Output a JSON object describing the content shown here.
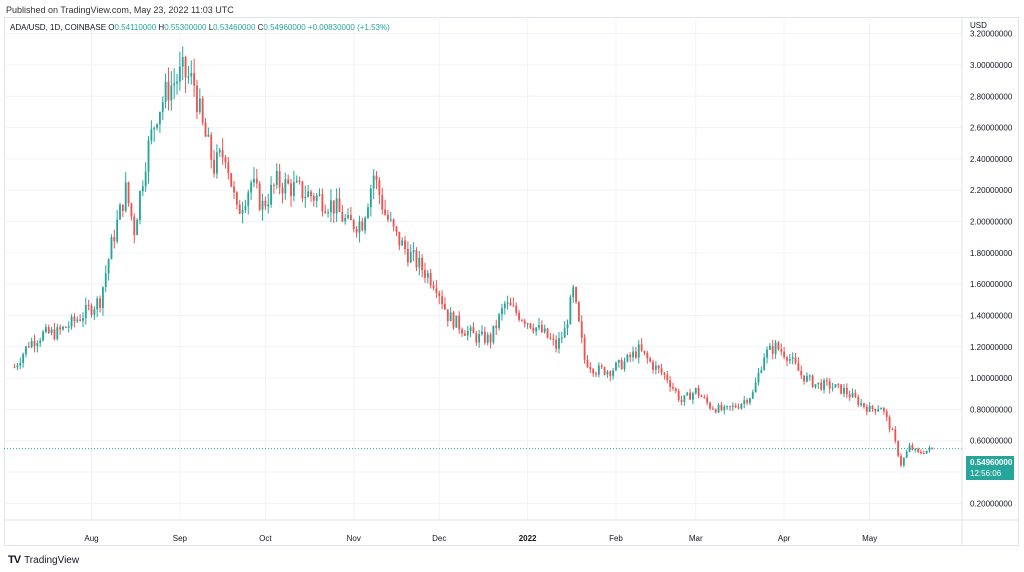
{
  "header": {
    "published": "Published on TradingView.com, May 23, 2022 11:03 UTC"
  },
  "legend": {
    "symbol": "ADA/USD, 1D, COINBASE",
    "o_label": "O",
    "o": "0.54110000",
    "h_label": "H",
    "h": "0.55300000",
    "l_label": "L",
    "l": "0.53460000",
    "c_label": "C",
    "c": "0.54960000",
    "change": "+0.00830000 (+1.53%)"
  },
  "price_label": {
    "price": "0.54960000",
    "countdown": "12:56:06"
  },
  "footer": {
    "brand": "TradingView"
  },
  "colors": {
    "up": "#26a69a",
    "down": "#ef5350",
    "grid": "#f0f3fa"
  },
  "chart_data": {
    "type": "candlestick",
    "symbol": "ADA/USD",
    "timeframe": "1D",
    "exchange": "COINBASE",
    "currency": "USD",
    "ylim": [
      0.1,
      3.3
    ],
    "yticks": [
      {
        "value": 3.2,
        "label": "3.20000000"
      },
      {
        "value": 3.0,
        "label": "3.00000000"
      },
      {
        "value": 2.8,
        "label": "2.80000000"
      },
      {
        "value": 2.6,
        "label": "2.60000000"
      },
      {
        "value": 2.4,
        "label": "2.40000000"
      },
      {
        "value": 2.2,
        "label": "2.20000000"
      },
      {
        "value": 2.0,
        "label": "2.00000000"
      },
      {
        "value": 1.8,
        "label": "1.80000000"
      },
      {
        "value": 1.6,
        "label": "1.60000000"
      },
      {
        "value": 1.4,
        "label": "1.40000000"
      },
      {
        "value": 1.2,
        "label": "1.20000000"
      },
      {
        "value": 1.0,
        "label": "1.00000000"
      },
      {
        "value": 0.8,
        "label": "0.80000000"
      },
      {
        "value": 0.6,
        "label": "0.60000000"
      },
      {
        "value": 0.4,
        "label": "0.40000000"
      },
      {
        "value": 0.2,
        "label": "0.20000000"
      }
    ],
    "xticks": [
      {
        "date": "2021-08-01",
        "label": "Aug"
      },
      {
        "date": "2021-09-01",
        "label": "Sep"
      },
      {
        "date": "2021-10-01",
        "label": "Oct"
      },
      {
        "date": "2021-11-01",
        "label": "Nov"
      },
      {
        "date": "2021-12-01",
        "label": "Dec"
      },
      {
        "date": "2022-01-01",
        "label": "2022"
      },
      {
        "date": "2022-02-01",
        "label": "Feb"
      },
      {
        "date": "2022-03-01",
        "label": "Mar"
      },
      {
        "date": "2022-04-01",
        "label": "Apr"
      },
      {
        "date": "2022-05-01",
        "label": "May"
      }
    ],
    "last_price": 0.5496,
    "close_path": [
      {
        "date": "2021-07-05",
        "close": 1.07
      },
      {
        "date": "2021-07-10",
        "close": 1.22
      },
      {
        "date": "2021-07-15",
        "close": 1.28
      },
      {
        "date": "2021-07-20",
        "close": 1.29
      },
      {
        "date": "2021-07-25",
        "close": 1.35
      },
      {
        "date": "2021-07-30",
        "close": 1.42
      },
      {
        "date": "2021-08-04",
        "close": 1.5
      },
      {
        "date": "2021-08-08",
        "close": 1.85
      },
      {
        "date": "2021-08-13",
        "close": 2.2
      },
      {
        "date": "2021-08-16",
        "close": 1.95
      },
      {
        "date": "2021-08-20",
        "close": 2.4
      },
      {
        "date": "2021-08-24",
        "close": 2.7
      },
      {
        "date": "2021-08-28",
        "close": 2.85
      },
      {
        "date": "2021-09-02",
        "close": 2.95
      },
      {
        "date": "2021-09-06",
        "close": 2.88
      },
      {
        "date": "2021-09-09",
        "close": 2.6
      },
      {
        "date": "2021-09-13",
        "close": 2.35
      },
      {
        "date": "2021-09-17",
        "close": 2.45
      },
      {
        "date": "2021-09-21",
        "close": 2.05
      },
      {
        "date": "2021-09-26",
        "close": 2.25
      },
      {
        "date": "2021-09-30",
        "close": 2.1
      },
      {
        "date": "2021-10-05",
        "close": 2.25
      },
      {
        "date": "2021-10-10",
        "close": 2.22
      },
      {
        "date": "2021-10-15",
        "close": 2.18
      },
      {
        "date": "2021-10-20",
        "close": 2.15
      },
      {
        "date": "2021-10-25",
        "close": 2.1
      },
      {
        "date": "2021-10-30",
        "close": 1.98
      },
      {
        "date": "2021-11-04",
        "close": 2.0
      },
      {
        "date": "2021-11-08",
        "close": 2.3
      },
      {
        "date": "2021-11-12",
        "close": 2.05
      },
      {
        "date": "2021-11-16",
        "close": 1.9
      },
      {
        "date": "2021-11-20",
        "close": 1.8
      },
      {
        "date": "2021-11-25",
        "close": 1.7
      },
      {
        "date": "2021-11-30",
        "close": 1.6
      },
      {
        "date": "2021-12-04",
        "close": 1.4
      },
      {
        "date": "2021-12-09",
        "close": 1.32
      },
      {
        "date": "2021-12-14",
        "close": 1.26
      },
      {
        "date": "2021-12-19",
        "close": 1.25
      },
      {
        "date": "2021-12-24",
        "close": 1.47
      },
      {
        "date": "2021-12-28",
        "close": 1.42
      },
      {
        "date": "2022-01-02",
        "close": 1.35
      },
      {
        "date": "2022-01-07",
        "close": 1.28
      },
      {
        "date": "2022-01-11",
        "close": 1.2
      },
      {
        "date": "2022-01-14",
        "close": 1.3
      },
      {
        "date": "2022-01-17",
        "close": 1.55
      },
      {
        "date": "2022-01-21",
        "close": 1.12
      },
      {
        "date": "2022-01-25",
        "close": 1.05
      },
      {
        "date": "2022-01-30",
        "close": 1.05
      },
      {
        "date": "2022-02-04",
        "close": 1.1
      },
      {
        "date": "2022-02-09",
        "close": 1.18
      },
      {
        "date": "2022-02-14",
        "close": 1.08
      },
      {
        "date": "2022-02-19",
        "close": 1.0
      },
      {
        "date": "2022-02-24",
        "close": 0.85
      },
      {
        "date": "2022-03-01",
        "close": 0.92
      },
      {
        "date": "2022-03-06",
        "close": 0.82
      },
      {
        "date": "2022-03-11",
        "close": 0.79
      },
      {
        "date": "2022-03-16",
        "close": 0.83
      },
      {
        "date": "2022-03-21",
        "close": 0.9
      },
      {
        "date": "2022-03-25",
        "close": 1.15
      },
      {
        "date": "2022-03-29",
        "close": 1.2
      },
      {
        "date": "2022-04-02",
        "close": 1.15
      },
      {
        "date": "2022-04-07",
        "close": 1.02
      },
      {
        "date": "2022-04-12",
        "close": 0.96
      },
      {
        "date": "2022-04-17",
        "close": 0.95
      },
      {
        "date": "2022-04-22",
        "close": 0.92
      },
      {
        "date": "2022-04-27",
        "close": 0.85
      },
      {
        "date": "2022-05-01",
        "close": 0.8
      },
      {
        "date": "2022-05-05",
        "close": 0.82
      },
      {
        "date": "2022-05-09",
        "close": 0.65
      },
      {
        "date": "2022-05-12",
        "close": 0.45
      },
      {
        "date": "2022-05-15",
        "close": 0.56
      },
      {
        "date": "2022-05-18",
        "close": 0.52
      },
      {
        "date": "2022-05-23",
        "close": 0.5496
      }
    ]
  }
}
